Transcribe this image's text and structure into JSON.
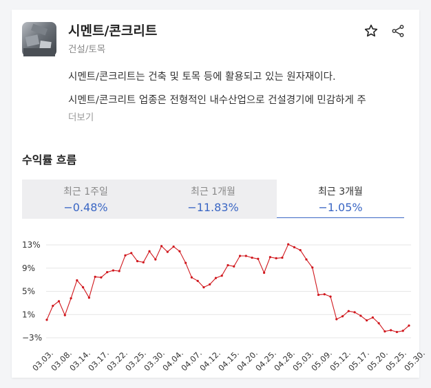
{
  "header": {
    "title": "시멘트/콘크리트",
    "subtitle": "건설/토목",
    "favorite_icon": "star-icon",
    "share_icon": "share-icon"
  },
  "description": {
    "line1": "시멘트/콘크리트는 건축 및 토목 등에 활용되고 있는 원자재이다.",
    "line2": "시멘트/콘크리트 업종은 전형적인 내수산업으로 건설경기에 민감하게 주",
    "more_label": "더보기"
  },
  "section_title": "수익률 흐름",
  "tabs": [
    {
      "label": "최근 1주일",
      "value": "−0.48%"
    },
    {
      "label": "최근 1개월",
      "value": "−11.83%"
    },
    {
      "label": "최근 3개월",
      "value": "−1.05%"
    }
  ],
  "colors": {
    "accent": "#3a66c4",
    "line": "#d0161c",
    "grid": "#e6e6e6"
  },
  "chart_data": {
    "type": "line",
    "y_ticks": [
      "13%",
      "9%",
      "5%",
      "1%",
      "−3%"
    ],
    "y_tick_values": [
      13,
      9,
      5,
      1,
      -3
    ],
    "ylim": [
      -3,
      13
    ],
    "x_tick_labels": [
      "03.03.",
      "03.08.",
      "03.14.",
      "03.17.",
      "03.22.",
      "03.25.",
      "03.30.",
      "04.04.",
      "04.07.",
      "04.12.",
      "04.15.",
      "04.20.",
      "04.25.",
      "04.28.",
      "05.03.",
      "05.09.",
      "05.12.",
      "05.17.",
      "05.20.",
      "05.25.",
      "05.30."
    ],
    "grid": true,
    "series": [
      {
        "values": [
          0.1,
          2.5,
          3.3,
          0.9,
          3.8,
          6.9,
          5.7,
          3.9,
          7.5,
          7.4,
          8.3,
          8.6,
          8.5,
          11.2,
          11.6,
          10.2,
          10.0,
          11.9,
          10.5,
          12.8,
          11.8,
          12.7,
          11.9,
          9.9,
          7.4,
          6.8,
          5.7,
          6.2,
          7.3,
          7.7,
          9.5,
          9.3,
          11.1,
          11.1,
          10.8,
          10.6,
          8.2,
          10.9,
          10.7,
          10.8,
          13.1,
          12.6,
          12.1,
          10.5,
          9.1,
          4.4,
          4.5,
          4.1,
          0.2,
          0.7,
          1.6,
          1.4,
          0.8,
          0.0,
          0.5,
          -0.5,
          -1.9,
          -1.7,
          -2.0,
          -1.8,
          -0.9
        ]
      }
    ]
  }
}
